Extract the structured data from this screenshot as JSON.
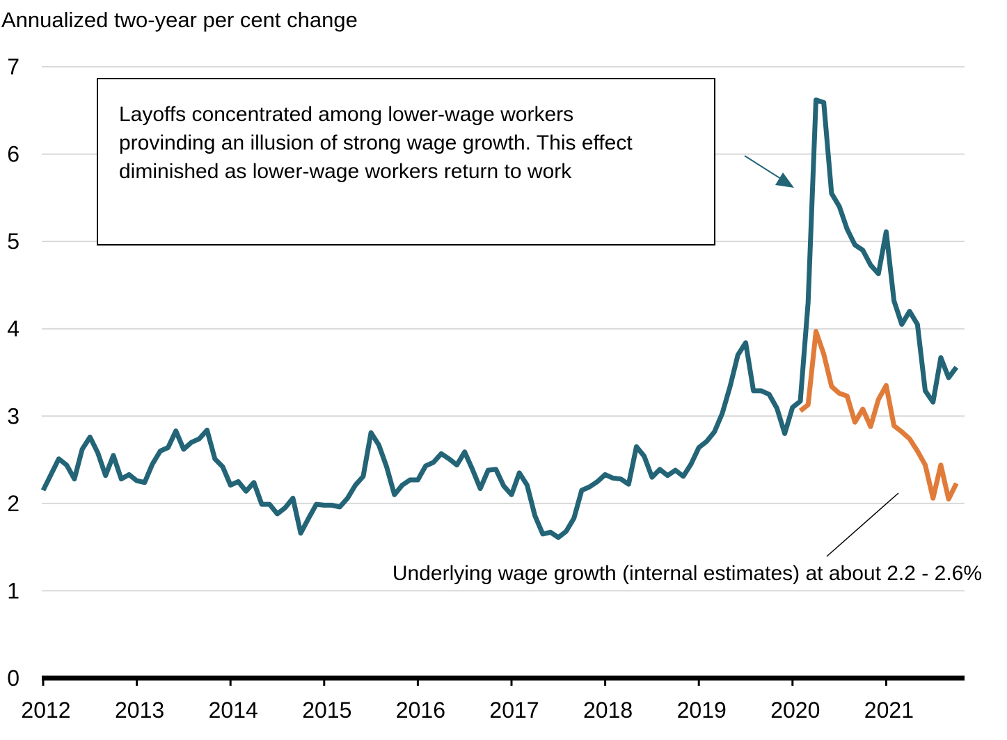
{
  "chart_data": {
    "type": "line",
    "title": "",
    "ylabel": "Annualized two-year per cent change",
    "xlabel": "",
    "ylim": [
      0,
      7
    ],
    "yticks": [
      "0",
      "1",
      "2",
      "3",
      "4",
      "5",
      "6",
      "7"
    ],
    "xticks": [
      "2012",
      "2013",
      "2014",
      "2015",
      "2016",
      "2017",
      "2018",
      "2019",
      "2020",
      "2021"
    ],
    "grid": "horizontal",
    "colors": {
      "observed": "#236477",
      "underlying": "#e07b39",
      "grid": "#d9d9d9",
      "axis": "#000000"
    },
    "series": [
      {
        "key": "observed",
        "start": "2012-01",
        "values": [
          2.15,
          2.33,
          2.51,
          2.44,
          2.28,
          2.62,
          2.76,
          2.58,
          2.32,
          2.55,
          2.28,
          2.33,
          2.26,
          2.24,
          2.45,
          2.6,
          2.64,
          2.83,
          2.62,
          2.7,
          2.74,
          2.84,
          2.51,
          2.42,
          2.21,
          2.25,
          2.14,
          2.24,
          1.99,
          1.99,
          1.88,
          1.95,
          2.06,
          1.66,
          1.83,
          1.99,
          1.98,
          1.98,
          1.96,
          2.06,
          2.21,
          2.31,
          2.81,
          2.67,
          2.42,
          2.1,
          2.21,
          2.27,
          2.27,
          2.43,
          2.47,
          2.57,
          2.51,
          2.44,
          2.59,
          2.39,
          2.17,
          2.38,
          2.39,
          2.2,
          2.1,
          2.35,
          2.21,
          1.86,
          1.65,
          1.67,
          1.61,
          1.68,
          1.83,
          2.15,
          2.19,
          2.25,
          2.33,
          2.29,
          2.28,
          2.22,
          2.65,
          2.54,
          2.3,
          2.39,
          2.32,
          2.38,
          2.31,
          2.45,
          2.64,
          2.71,
          2.82,
          3.03,
          3.34,
          3.7,
          3.84,
          3.29,
          3.29,
          3.25,
          3.09,
          2.8,
          3.1,
          3.17,
          4.3,
          6.62,
          6.59,
          5.55,
          5.4,
          5.14,
          4.96,
          4.9,
          4.73,
          4.63,
          5.11,
          4.32,
          4.05,
          4.2,
          4.05,
          3.29,
          3.16,
          3.67,
          3.44,
          3.56
        ]
      },
      {
        "key": "underlying",
        "start": "2020-02",
        "values": [
          3.06,
          3.13,
          3.97,
          3.71,
          3.34,
          3.26,
          3.23,
          2.93,
          3.08,
          2.88,
          3.19,
          3.35,
          2.89,
          2.82,
          2.74,
          2.6,
          2.44,
          2.06,
          2.44,
          2.05,
          2.23
        ]
      }
    ],
    "annotations": {
      "box_text": [
        "Layoffs concentrated among lower-wage workers",
        "provinding an illusion of strong wage growth. This effect",
        "diminished as lower-wage workers return to work"
      ],
      "underlying_text": "Underlying wage growth (internal estimates) at about 2.2 - 2.6%"
    }
  }
}
